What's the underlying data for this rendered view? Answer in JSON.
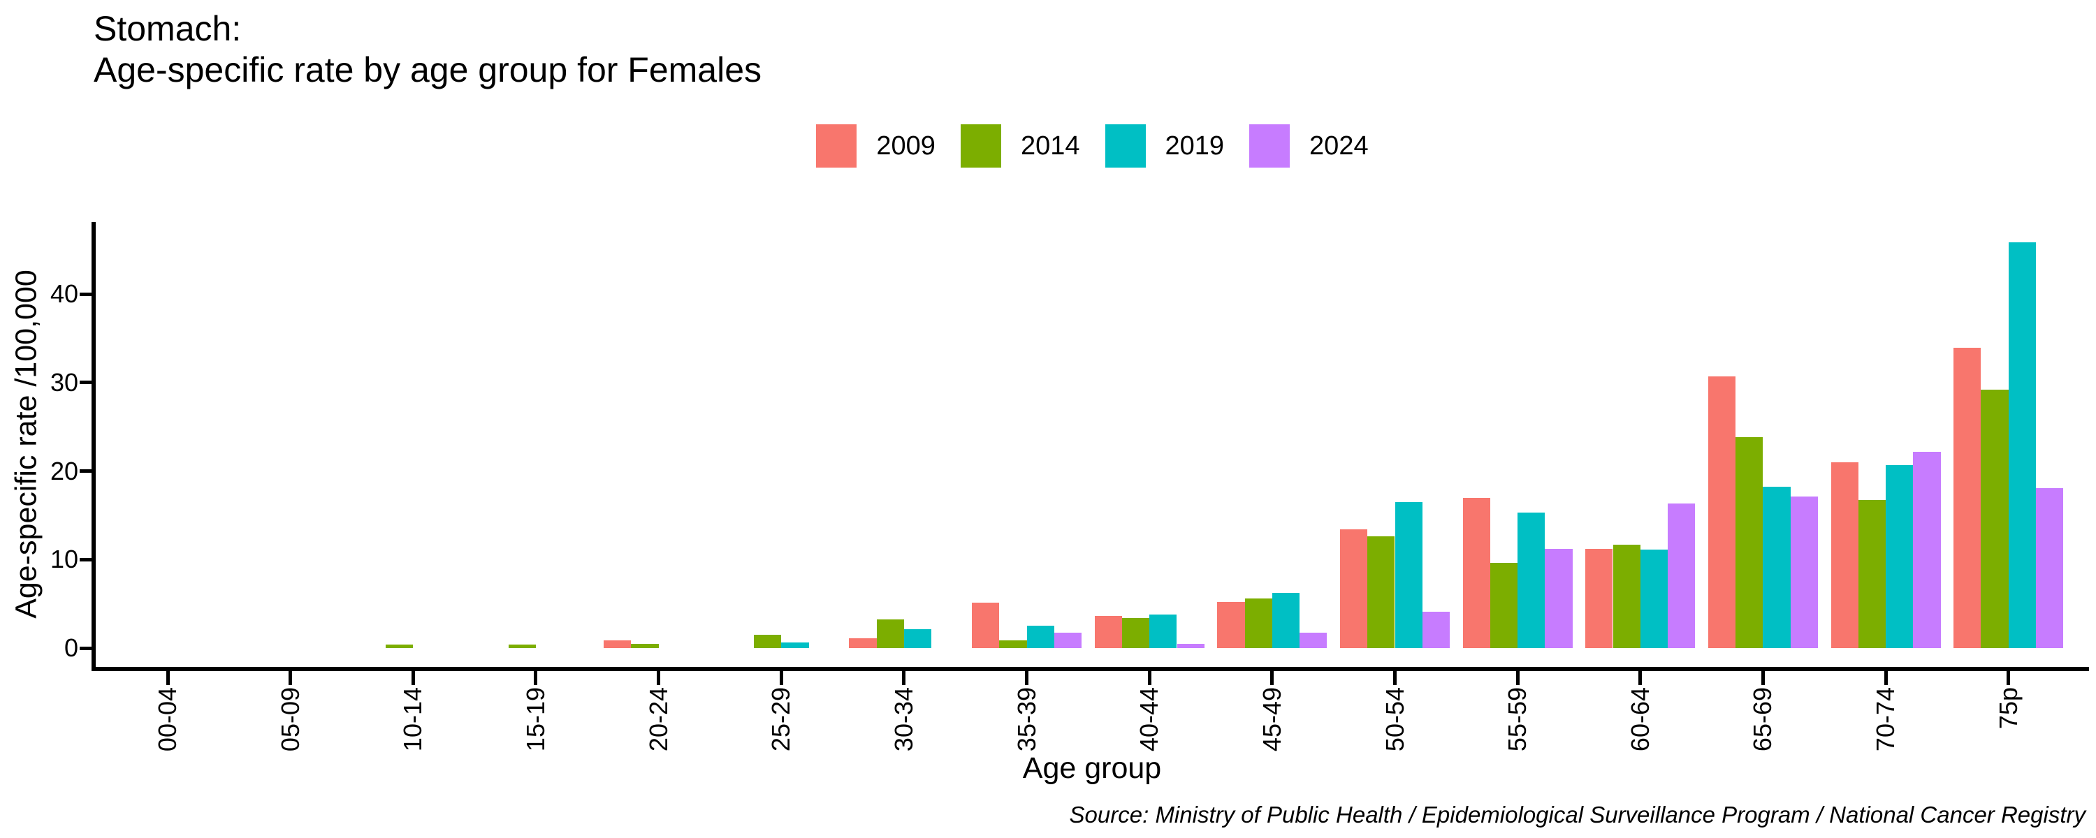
{
  "chart_data": {
    "type": "bar",
    "title_lines": [
      "Stomach:",
      "Age-specific rate by age group for Females"
    ],
    "xlabel": "Age group",
    "ylabel": "Age-specific rate /100,000",
    "source": "Source: Ministry of Public Health / Epidemiological Surveillance Program / National Cancer Registry",
    "categories": [
      "00-04",
      "05-09",
      "10-14",
      "15-19",
      "20-24",
      "25-29",
      "30-34",
      "35-39",
      "40-44",
      "45-49",
      "50-54",
      "55-59",
      "60-64",
      "65-69",
      "70-74",
      "75p"
    ],
    "y_ticks": [
      0,
      10,
      20,
      30,
      40
    ],
    "ylim": [
      0,
      48
    ],
    "grid": false,
    "legend_position": "top-center",
    "series": [
      {
        "name": "2009",
        "color": "#F8766D",
        "values": [
          0,
          0,
          0,
          0,
          0.9,
          0,
          1.1,
          5.1,
          3.6,
          5.2,
          13.4,
          17.0,
          11.2,
          30.7,
          21.0,
          33.9
        ]
      },
      {
        "name": "2014",
        "color": "#7CAE00",
        "values": [
          0,
          0,
          0.4,
          0.4,
          0.5,
          1.5,
          3.2,
          0.9,
          3.4,
          5.6,
          12.6,
          9.6,
          11.7,
          23.8,
          16.7,
          29.2
        ]
      },
      {
        "name": "2019",
        "color": "#00BFC4",
        "values": [
          0,
          0,
          0,
          0,
          0,
          0.6,
          2.1,
          2.5,
          3.8,
          6.2,
          16.5,
          15.3,
          11.1,
          18.2,
          20.7,
          45.8
        ]
      },
      {
        "name": "2024",
        "color": "#C77CFF",
        "values": [
          0,
          0,
          0,
          0,
          0,
          0,
          0,
          1.7,
          0.5,
          1.7,
          4.1,
          11.2,
          16.3,
          17.1,
          22.2,
          18.1
        ]
      }
    ]
  }
}
